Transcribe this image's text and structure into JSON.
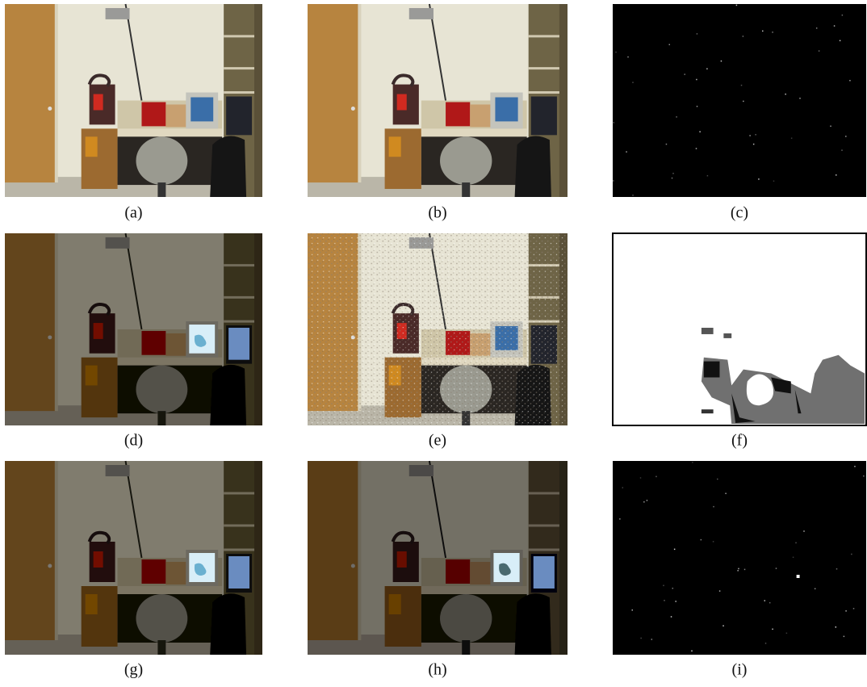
{
  "captions": [
    "(a)",
    "(b)",
    "(c)",
    "(d)",
    "(e)",
    "(f)",
    "(g)",
    "(h)",
    "(i)"
  ]
}
